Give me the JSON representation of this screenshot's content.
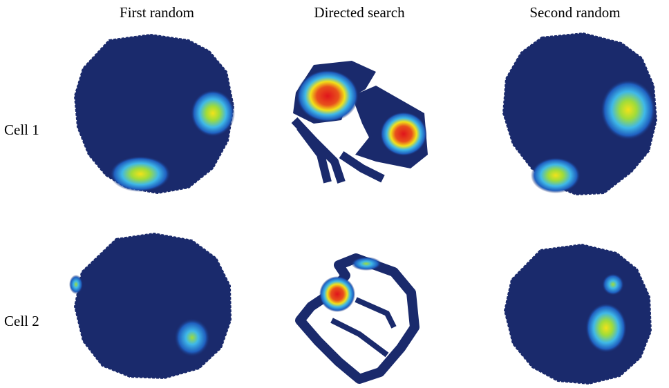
{
  "columns": [
    "First random",
    "Directed search",
    "Second random"
  ],
  "rows": [
    "Cell 1",
    "Cell 2"
  ],
  "colors": {
    "background_occupied": "#1a2a6c",
    "rate_low": "#1f5fbf",
    "rate_mid": "#3fb8e8",
    "rate_high_green": "#9fdc3a",
    "rate_peak_yellow": "#f2e21a",
    "rate_max_red": "#e0141c"
  }
}
